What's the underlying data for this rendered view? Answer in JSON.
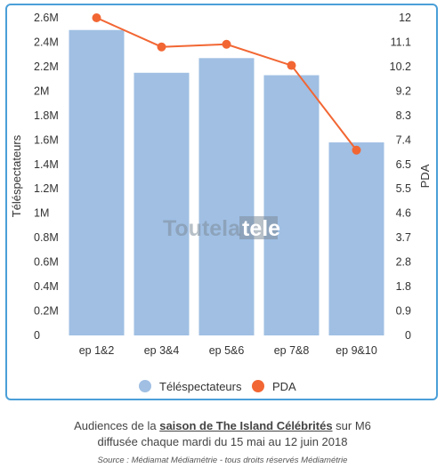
{
  "chart_data": {
    "type": "bar",
    "categories": [
      "ep 1&2",
      "ep 3&4",
      "ep 5&6",
      "ep 7&8",
      "ep 9&10"
    ],
    "series": [
      {
        "name": "Téléspectateurs",
        "kind": "bar",
        "axis": "left",
        "values": [
          2.5,
          2.15,
          2.27,
          2.13,
          1.58
        ],
        "color": "#a0bfe3"
      },
      {
        "name": "PDA",
        "kind": "line",
        "axis": "right",
        "values": [
          12,
          10.9,
          11.0,
          10.2,
          7.0
        ],
        "color": "#f26633"
      }
    ],
    "y_left": {
      "label": "Téléspectateurs",
      "range": [
        0,
        2.6
      ],
      "ticks": [
        "2.6M",
        "2.4M",
        "2.2M",
        "2M",
        "1.8M",
        "1.6M",
        "1.4M",
        "1.2M",
        "1M",
        "0.8M",
        "0.6M",
        "0.4M",
        "0.2M",
        "0"
      ]
    },
    "y_right": {
      "label": "PDA",
      "range": [
        0,
        12
      ],
      "ticks": [
        "12",
        "11.1",
        "10.2",
        "9.2",
        "8.3",
        "7.4",
        "6.5",
        "5.5",
        "4.6",
        "3.7",
        "2.8",
        "1.8",
        "0.9",
        "0"
      ]
    },
    "legend_position": "bottom-center",
    "watermark": {
      "part1": "Toutela",
      "part2": "tele"
    },
    "grid": false
  },
  "caption": {
    "line1_pre": "Audiences de la ",
    "line1_link": "saison de The Island Célébrités",
    "line1_post": " sur M6",
    "line2": "diffusée chaque mardi du 15 mai au 12 juin 2018",
    "source": "Source : Médiamat Médiamétrie - tous droits réservés Médiamétrie"
  }
}
